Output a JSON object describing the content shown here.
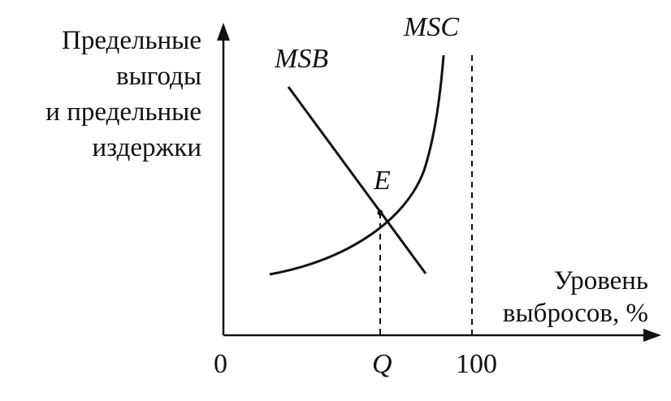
{
  "y_axis_label": [
    "Предельные",
    "выгоды",
    "и предельные",
    "издержки"
  ],
  "x_axis_label": [
    "Уровень",
    "выбросов, %"
  ],
  "curves": {
    "msb": "MSB",
    "msc": "MSC"
  },
  "equilibrium_label": "E",
  "ticks": {
    "origin": "0",
    "q": "Q",
    "hundred": "100"
  },
  "colors": {
    "ink": "#111111",
    "background": "#ffffff"
  }
}
